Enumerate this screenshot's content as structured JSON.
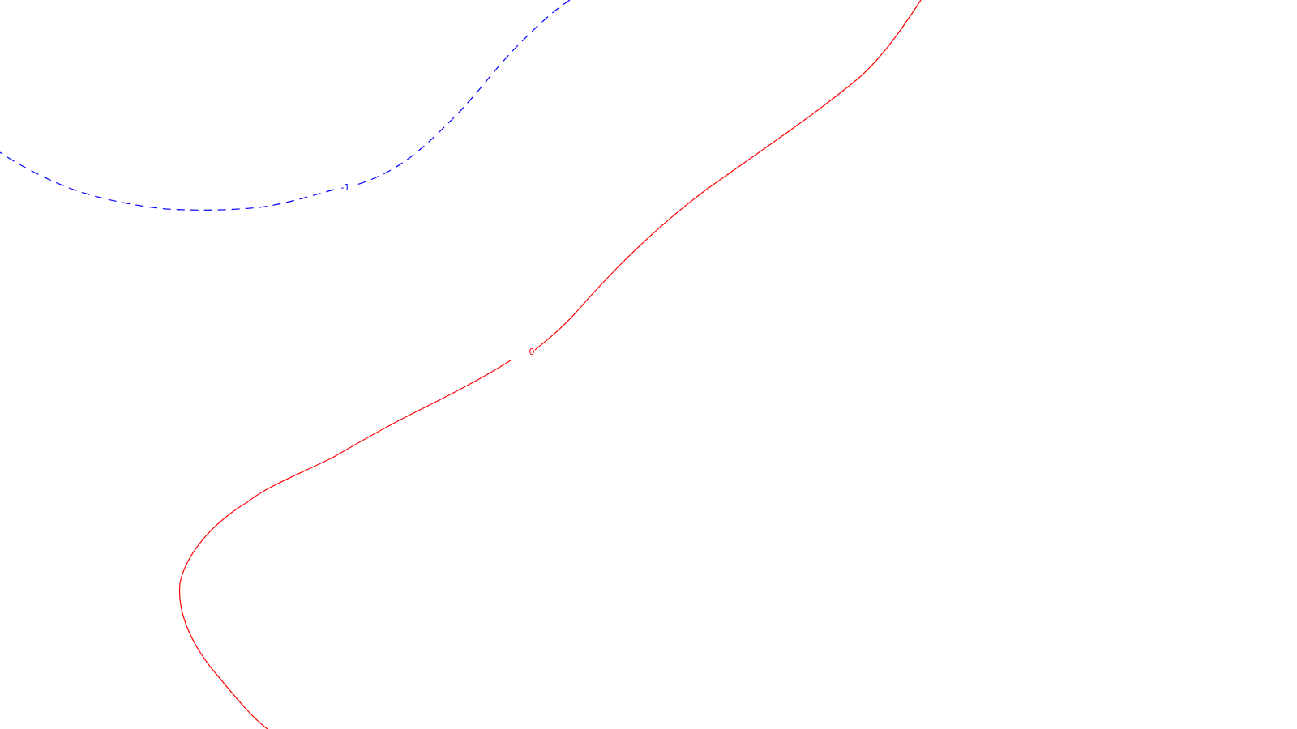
{
  "chart_data": {
    "type": "contour",
    "title": "",
    "xlabel": "",
    "ylabel": "",
    "grid": false,
    "legend": "none",
    "contours": [
      {
        "level_label": "0",
        "color": "#ff0000",
        "style": "solid"
      },
      {
        "level_label": "-1",
        "color": "#0000ff",
        "style": "dashed"
      }
    ]
  }
}
